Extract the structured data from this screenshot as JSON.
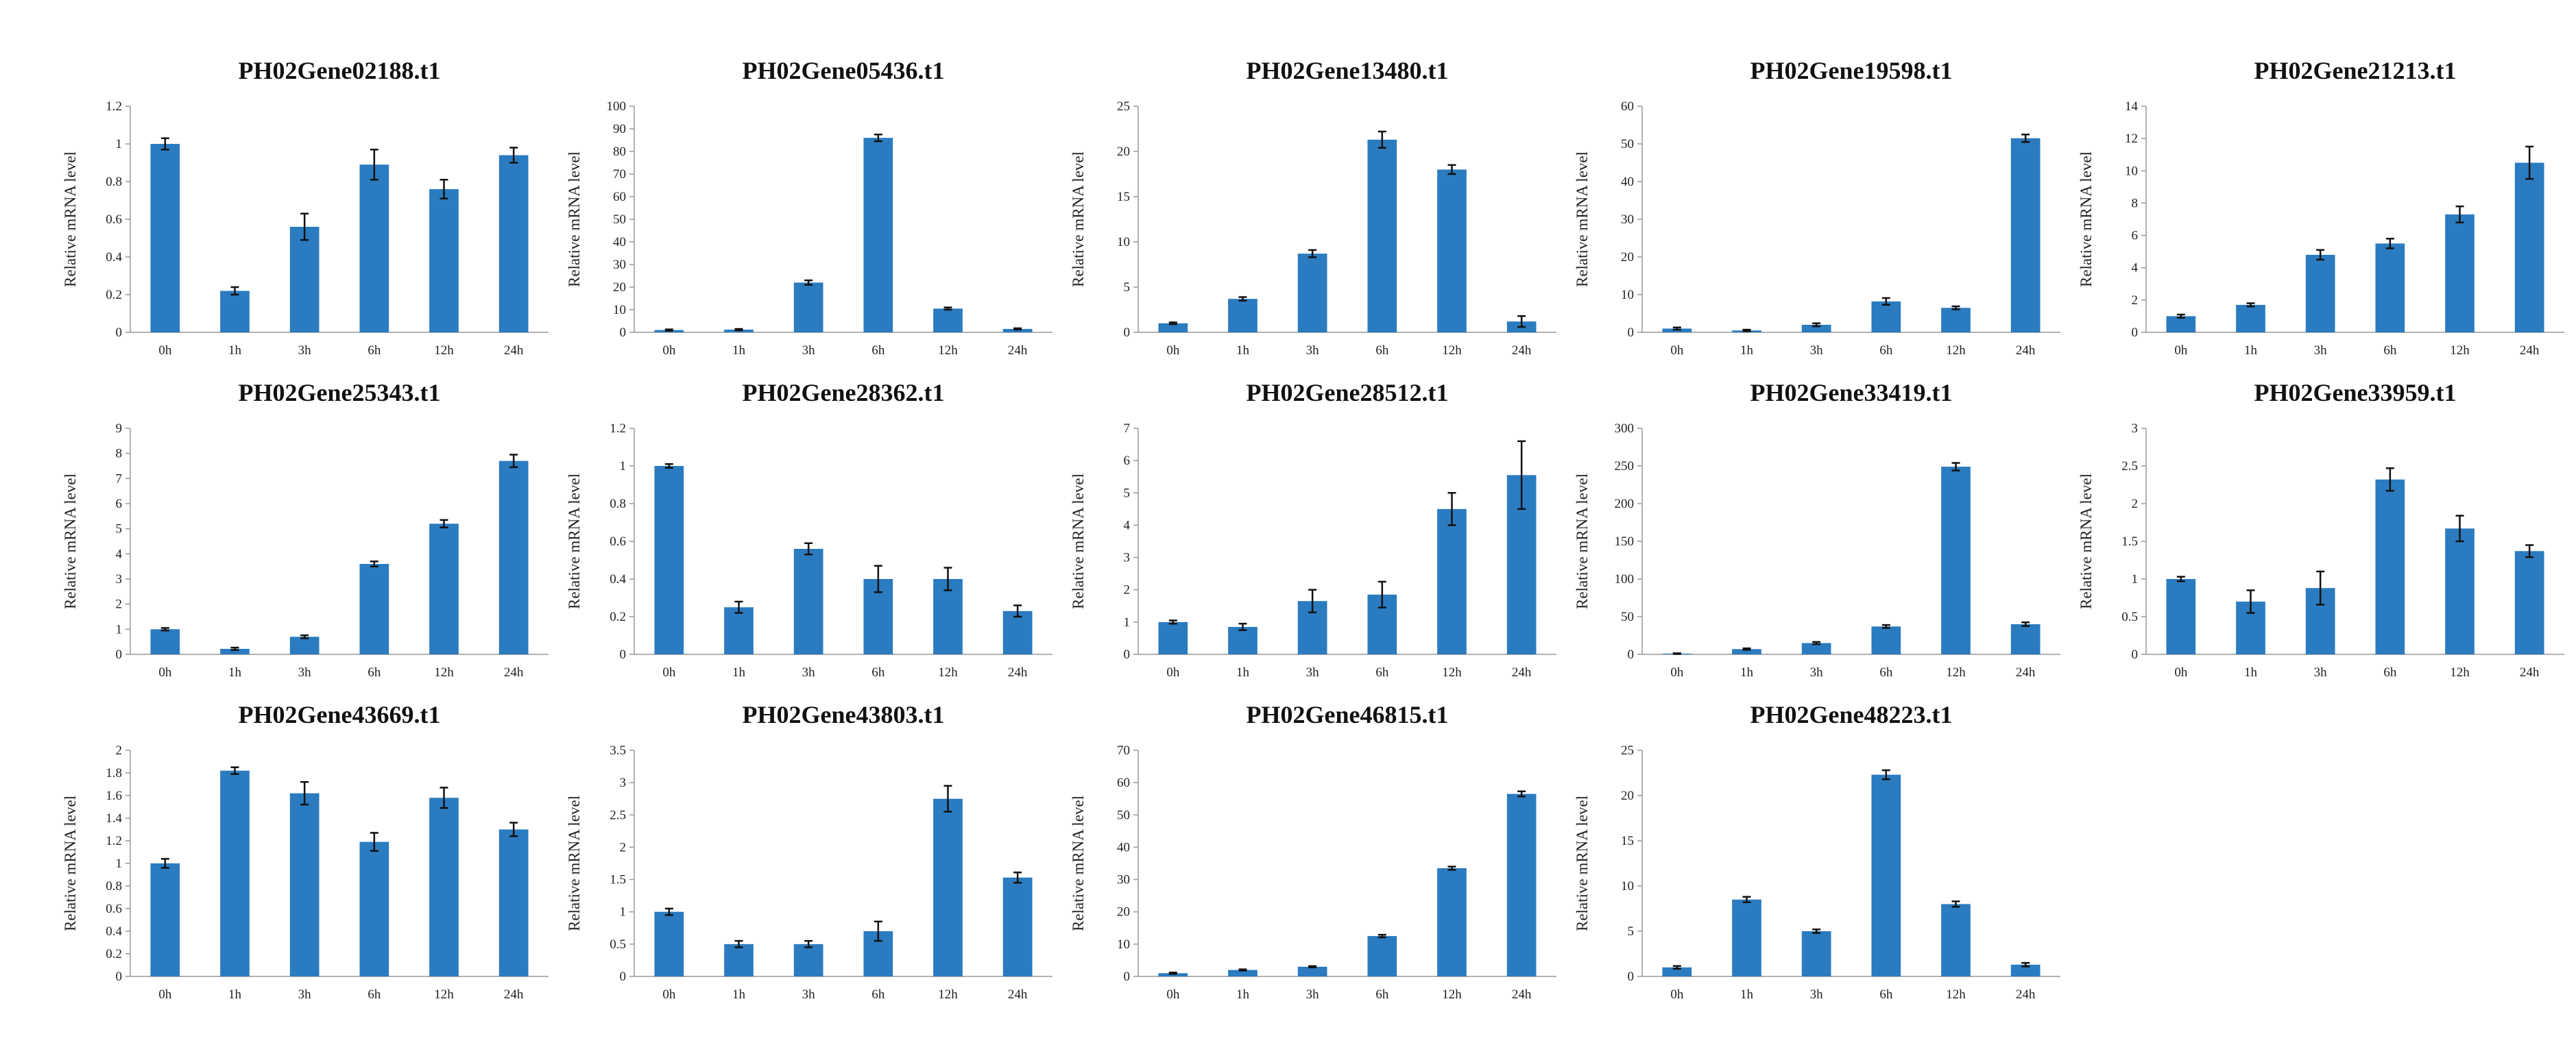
{
  "figure": {
    "common": {
      "ylabel": "Relative mRNA level",
      "categories": [
        "0h",
        "1h",
        "3h",
        "6h",
        "12h",
        "24h"
      ],
      "bar_color": "#2b7bc0",
      "error_color": "#111111"
    }
  },
  "chart_data": [
    {
      "type": "bar",
      "title": "PH02Gene02188.t1",
      "ylabel": "Relative mRNA level",
      "categories": [
        "0h",
        "1h",
        "3h",
        "6h",
        "12h",
        "24h"
      ],
      "values": [
        1.0,
        0.22,
        0.56,
        0.89,
        0.76,
        0.94
      ],
      "errors": [
        0.03,
        0.02,
        0.07,
        0.08,
        0.05,
        0.04
      ],
      "ylim": [
        0,
        1.2
      ],
      "yticks": [
        "0",
        "0.2",
        "0.4",
        "0.6",
        "0.8",
        "1",
        "1.2"
      ]
    },
    {
      "type": "bar",
      "title": "PH02Gene05436.t1",
      "ylabel": "Relative mRNA level",
      "categories": [
        "0h",
        "1h",
        "3h",
        "6h",
        "12h",
        "24h"
      ],
      "values": [
        1.0,
        1.2,
        22,
        86,
        10.5,
        1.5
      ],
      "errors": [
        0.3,
        0.3,
        1.0,
        1.5,
        0.5,
        0.3
      ],
      "ylim": [
        0,
        100
      ],
      "yticks": [
        "0",
        "10",
        "20",
        "30",
        "40",
        "50",
        "60",
        "70",
        "80",
        "90",
        "100"
      ]
    },
    {
      "type": "bar",
      "title": "PH02Gene13480.t1",
      "ylabel": "Relative mRNA level",
      "categories": [
        "0h",
        "1h",
        "3h",
        "6h",
        "12h",
        "24h"
      ],
      "values": [
        1.0,
        3.7,
        8.7,
        21.3,
        18.0,
        1.2
      ],
      "errors": [
        0.1,
        0.2,
        0.4,
        0.9,
        0.5,
        0.6
      ],
      "ylim": [
        0,
        25
      ],
      "yticks": [
        "0",
        "5",
        "10",
        "15",
        "20",
        "25"
      ]
    },
    {
      "type": "bar",
      "title": "PH02Gene19598.t1",
      "ylabel": "Relative mRNA level",
      "categories": [
        "0h",
        "1h",
        "3h",
        "6h",
        "12h",
        "24h"
      ],
      "values": [
        1.0,
        0.5,
        2.0,
        8.2,
        6.5,
        51.5
      ],
      "errors": [
        0.3,
        0.2,
        0.4,
        0.9,
        0.4,
        1.0
      ],
      "ylim": [
        0,
        60
      ],
      "yticks": [
        "0",
        "10",
        "20",
        "30",
        "40",
        "50",
        "60"
      ]
    },
    {
      "type": "bar",
      "title": "PH02Gene21213.t1",
      "ylabel": "Relative mRNA level",
      "categories": [
        "0h",
        "1h",
        "3h",
        "6h",
        "12h",
        "24h"
      ],
      "values": [
        1.0,
        1.7,
        4.8,
        5.5,
        7.3,
        10.5
      ],
      "errors": [
        0.1,
        0.1,
        0.3,
        0.3,
        0.5,
        1.0
      ],
      "ylim": [
        0,
        14
      ],
      "yticks": [
        "0",
        "2",
        "4",
        "6",
        "8",
        "10",
        "12",
        "14"
      ]
    },
    {
      "type": "bar",
      "title": "PH02Gene25343.t1",
      "ylabel": "Relative mRNA level",
      "categories": [
        "0h",
        "1h",
        "3h",
        "6h",
        "12h",
        "24h"
      ],
      "values": [
        1.0,
        0.22,
        0.7,
        3.6,
        5.2,
        7.7
      ],
      "errors": [
        0.05,
        0.05,
        0.06,
        0.1,
        0.15,
        0.25
      ],
      "ylim": [
        0,
        9
      ],
      "yticks": [
        "0",
        "1",
        "2",
        "3",
        "4",
        "5",
        "6",
        "7",
        "8",
        "9"
      ]
    },
    {
      "type": "bar",
      "title": "PH02Gene28362.t1",
      "ylabel": "Relative mRNA level",
      "categories": [
        "0h",
        "1h",
        "3h",
        "6h",
        "12h",
        "24h"
      ],
      "values": [
        1.0,
        0.25,
        0.56,
        0.4,
        0.4,
        0.23
      ],
      "errors": [
        0.01,
        0.03,
        0.03,
        0.07,
        0.06,
        0.03
      ],
      "ylim": [
        0,
        1.2
      ],
      "yticks": [
        "0",
        "0.2",
        "0.4",
        "0.6",
        "0.8",
        "1",
        "1.2"
      ]
    },
    {
      "type": "bar",
      "title": "PH02Gene28512.t1",
      "ylabel": "Relative mRNA level",
      "categories": [
        "0h",
        "1h",
        "3h",
        "6h",
        "12h",
        "24h"
      ],
      "values": [
        1.0,
        0.85,
        1.65,
        1.85,
        4.5,
        5.55
      ],
      "errors": [
        0.05,
        0.1,
        0.35,
        0.4,
        0.5,
        1.05
      ],
      "ylim": [
        0,
        7
      ],
      "yticks": [
        "0",
        "1",
        "2",
        "3",
        "4",
        "5",
        "6",
        "7"
      ]
    },
    {
      "type": "bar",
      "title": "PH02Gene33419.t1",
      "ylabel": "Relative mRNA level",
      "categories": [
        "0h",
        "1h",
        "3h",
        "6h",
        "12h",
        "24h"
      ],
      "values": [
        1.0,
        7,
        15,
        37,
        249,
        40
      ],
      "errors": [
        0.5,
        1.0,
        1.5,
        2.0,
        5.0,
        2.5
      ],
      "ylim": [
        0,
        300
      ],
      "yticks": [
        "0",
        "50",
        "100",
        "150",
        "200",
        "250",
        "300"
      ]
    },
    {
      "type": "bar",
      "title": "PH02Gene33959.t1",
      "ylabel": "Relative mRNA level",
      "categories": [
        "0h",
        "1h",
        "3h",
        "6h",
        "12h",
        "24h"
      ],
      "values": [
        1.0,
        0.7,
        0.88,
        2.32,
        1.67,
        1.37
      ],
      "errors": [
        0.03,
        0.15,
        0.22,
        0.15,
        0.17,
        0.08
      ],
      "ylim": [
        0,
        3
      ],
      "yticks": [
        "0",
        "0.5",
        "1",
        "1.5",
        "2",
        "2.5",
        "3"
      ]
    },
    {
      "type": "bar",
      "title": "PH02Gene43669.t1",
      "ylabel": "Relative mRNA level",
      "categories": [
        "0h",
        "1h",
        "3h",
        "6h",
        "12h",
        "24h"
      ],
      "values": [
        1.0,
        1.82,
        1.62,
        1.19,
        1.58,
        1.3
      ],
      "errors": [
        0.04,
        0.03,
        0.1,
        0.08,
        0.09,
        0.06
      ],
      "ylim": [
        0,
        2
      ],
      "yticks": [
        "0",
        "0.2",
        "0.4",
        "0.6",
        "0.8",
        "1",
        "1.2",
        "1.4",
        "1.6",
        "1.8",
        "2"
      ]
    },
    {
      "type": "bar",
      "title": "PH02Gene43803.t1",
      "ylabel": "Relative mRNA level",
      "categories": [
        "0h",
        "1h",
        "3h",
        "6h",
        "12h",
        "24h"
      ],
      "values": [
        1.0,
        0.5,
        0.5,
        0.7,
        2.75,
        1.53
      ],
      "errors": [
        0.05,
        0.05,
        0.05,
        0.15,
        0.2,
        0.08
      ],
      "ylim": [
        0,
        3.5
      ],
      "yticks": [
        "0",
        "0.5",
        "1",
        "1.5",
        "2",
        "2.5",
        "3",
        "3.5"
      ]
    },
    {
      "type": "bar",
      "title": "PH02Gene46815.t1",
      "ylabel": "Relative mRNA level",
      "categories": [
        "0h",
        "1h",
        "3h",
        "6h",
        "12h",
        "24h"
      ],
      "values": [
        1.0,
        2.0,
        3.0,
        12.5,
        33.5,
        56.5
      ],
      "errors": [
        0.2,
        0.2,
        0.2,
        0.4,
        0.5,
        0.8
      ],
      "ylim": [
        0,
        70
      ],
      "yticks": [
        "0",
        "10",
        "20",
        "30",
        "40",
        "50",
        "60",
        "70"
      ]
    },
    {
      "type": "bar",
      "title": "PH02Gene48223.t1",
      "ylabel": "Relative mRNA level",
      "categories": [
        "0h",
        "1h",
        "3h",
        "6h",
        "12h",
        "24h"
      ],
      "values": [
        1.0,
        8.5,
        5.0,
        22.3,
        8.0,
        1.3
      ],
      "errors": [
        0.15,
        0.3,
        0.2,
        0.5,
        0.3,
        0.2
      ],
      "ylim": [
        0,
        25
      ],
      "yticks": [
        "0",
        "5",
        "10",
        "15",
        "20",
        "25"
      ]
    }
  ]
}
